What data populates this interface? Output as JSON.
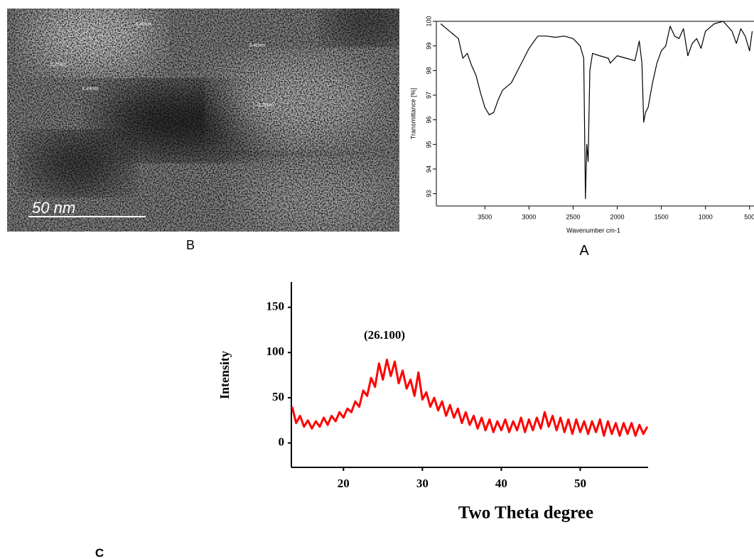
{
  "image": {
    "scale_bar": "50 nm",
    "labels": [
      "4.45nm",
      "3.40nm",
      "3.37nm",
      "4.44nm",
      "3.28nm"
    ]
  },
  "panel_labels": [
    "B",
    "A",
    "C"
  ],
  "chart_data": [
    {
      "type": "line",
      "y_label": "Transmittance [%]",
      "x_label": "Wavenumber cm-1",
      "color": "#000000",
      "xlim": [
        4050,
        450
      ],
      "xticks": [
        3500,
        3000,
        2500,
        2000,
        1500,
        1000,
        500
      ],
      "ylim": [
        92.5,
        100
      ],
      "yticks": [
        93,
        94,
        95,
        96,
        97,
        98,
        99,
        100
      ],
      "x": [
        4000,
        3900,
        3800,
        3750,
        3700,
        3650,
        3600,
        3550,
        3500,
        3450,
        3400,
        3350,
        3300,
        3200,
        3100,
        3000,
        2900,
        2800,
        2700,
        2600,
        2500,
        2420,
        2380,
        2360,
        2345,
        2330,
        2310,
        2280,
        2200,
        2100,
        2080,
        2000,
        1900,
        1800,
        1750,
        1720,
        1700,
        1680,
        1650,
        1600,
        1550,
        1500,
        1450,
        1400,
        1350,
        1300,
        1250,
        1200,
        1150,
        1100,
        1050,
        1000,
        900,
        800,
        750,
        700,
        650,
        600,
        550,
        500,
        470
      ],
      "values": [
        99.9,
        99.6,
        99.3,
        98.5,
        98.7,
        98.2,
        97.8,
        97.1,
        96.5,
        96.2,
        96.3,
        96.8,
        97.2,
        97.5,
        98.2,
        98.9,
        99.4,
        99.4,
        99.35,
        99.4,
        99.3,
        99.0,
        98.5,
        92.8,
        95.0,
        94.3,
        98.0,
        98.7,
        98.6,
        98.5,
        98.3,
        98.6,
        98.5,
        98.4,
        99.2,
        98.3,
        95.9,
        96.3,
        96.5,
        97.5,
        98.3,
        98.8,
        99.0,
        99.8,
        99.4,
        99.3,
        99.7,
        98.6,
        99.1,
        99.3,
        98.9,
        99.6,
        99.9,
        100,
        99.8,
        99.6,
        99.1,
        99.7,
        99.4,
        98.8,
        99.6
      ]
    },
    {
      "type": "line",
      "y_label": "Intensity",
      "x_label": "Two Theta degree",
      "annotation": "(26.100)",
      "color": "#ff0000",
      "xlim": [
        13.4,
        58.6
      ],
      "xticks": [
        20,
        30,
        40,
        50
      ],
      "ylim": [
        -27,
        178
      ],
      "yticks": [
        0,
        50,
        100,
        150
      ],
      "x": [
        13.5,
        14,
        14.5,
        15,
        15.5,
        16,
        16.5,
        17,
        17.5,
        18,
        18.5,
        19,
        19.5,
        20,
        20.5,
        21,
        21.5,
        22,
        22.5,
        23,
        23.5,
        24,
        24.5,
        25,
        25.5,
        26,
        26.5,
        27,
        27.5,
        28,
        28.5,
        29,
        29.5,
        30,
        30.5,
        31,
        31.5,
        32,
        32.5,
        33,
        33.5,
        34,
        34.5,
        35,
        35.5,
        36,
        36.5,
        37,
        37.5,
        38,
        38.5,
        39,
        39.5,
        40,
        40.5,
        41,
        41.5,
        42,
        42.5,
        43,
        43.5,
        44,
        44.5,
        45,
        45.5,
        46,
        46.5,
        47,
        47.5,
        48,
        48.5,
        49,
        49.5,
        50,
        50.5,
        51,
        51.5,
        52,
        52.5,
        53,
        53.5,
        54,
        54.5,
        55,
        55.5,
        56,
        56.5,
        57,
        57.5,
        58,
        58.5
      ],
      "values": [
        40,
        22,
        30,
        18,
        25,
        16,
        24,
        18,
        28,
        20,
        30,
        24,
        34,
        28,
        38,
        34,
        46,
        40,
        58,
        52,
        72,
        62,
        88,
        70,
        92,
        74,
        90,
        66,
        80,
        60,
        70,
        52,
        78,
        48,
        56,
        40,
        50,
        36,
        46,
        30,
        42,
        28,
        38,
        22,
        34,
        20,
        30,
        16,
        28,
        14,
        26,
        12,
        24,
        14,
        26,
        12,
        24,
        14,
        28,
        12,
        26,
        14,
        28,
        16,
        34,
        18,
        30,
        14,
        28,
        12,
        26,
        10,
        26,
        12,
        24,
        10,
        24,
        12,
        26,
        8,
        24,
        10,
        22,
        8,
        22,
        10,
        22,
        8,
        20,
        10,
        18
      ]
    }
  ]
}
